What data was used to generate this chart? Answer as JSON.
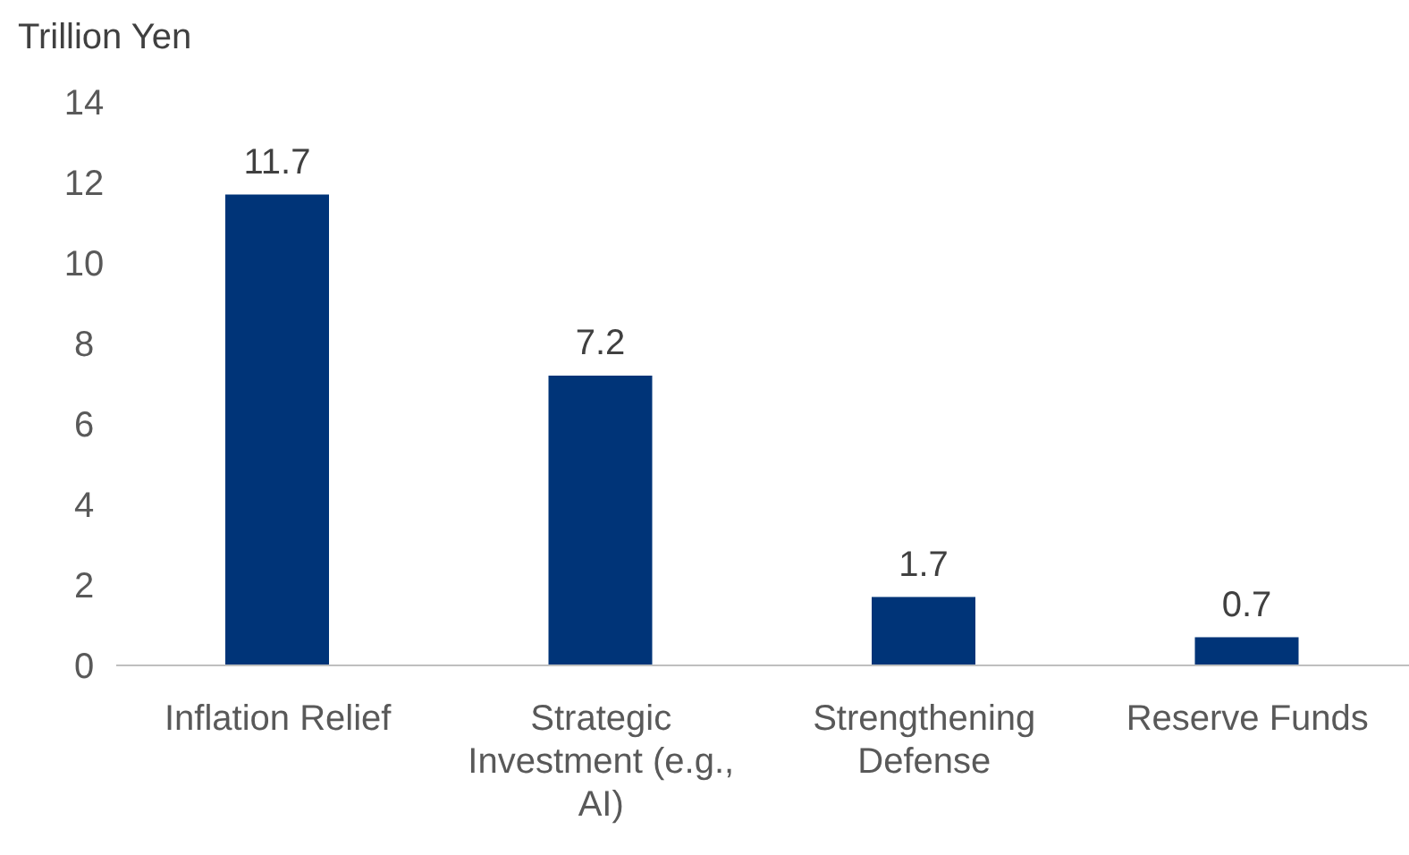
{
  "chart_data": {
    "type": "bar",
    "ylabel": "Trillion Yen",
    "categories": [
      "Inflation Relief",
      "Strategic Investment (e.g., AI)",
      "Strengthening Defense",
      "Reserve Funds"
    ],
    "values": [
      11.7,
      7.2,
      1.7,
      0.7
    ],
    "color": "#003478",
    "ylim": [
      0,
      14
    ],
    "yticks": [
      0,
      2,
      4,
      6,
      8,
      10,
      12,
      14
    ],
    "grid": false,
    "data_labels": true
  }
}
